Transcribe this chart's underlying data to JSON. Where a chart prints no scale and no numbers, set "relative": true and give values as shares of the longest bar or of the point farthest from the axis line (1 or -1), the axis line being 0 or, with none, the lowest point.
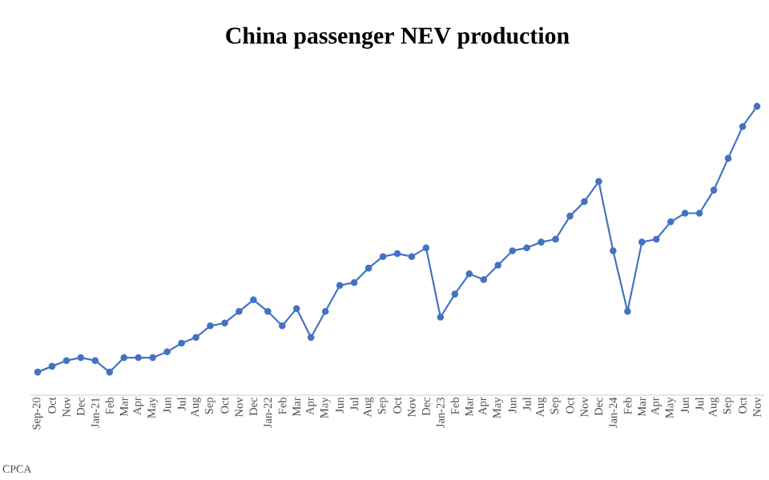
{
  "chart_data": {
    "type": "line",
    "title": "China passenger NEV production",
    "relative": true,
    "marker": "circle",
    "line_style": "solid",
    "categories": [
      "Sep-20",
      "Oct",
      "Nov",
      "Dec",
      "Jan-21",
      "Feb",
      "Mar",
      "Apr",
      "May",
      "Jun",
      "Jul",
      "Aug",
      "Sep",
      "Oct",
      "Nov",
      "Dec",
      "Jan-22",
      "Feb",
      "Mar",
      "Apr",
      "May",
      "Jun",
      "Jul",
      "Aug",
      "Sep",
      "Oct",
      "Nov",
      "Dec",
      "Jan-23",
      "Feb",
      "Mar",
      "Apr",
      "May",
      "Jun",
      "Jul",
      "Aug",
      "Sep",
      "Oct",
      "Nov",
      "Dec",
      "Jan-24",
      "Feb",
      "Mar",
      "Apr",
      "May",
      "Jun",
      "Jul",
      "Aug",
      "Sep",
      "Oct",
      "Nov"
    ],
    "series": [
      {
        "color": "#4472c4",
        "values": [
          0.08,
          0.1,
          0.12,
          0.13,
          0.12,
          0.08,
          0.13,
          0.13,
          0.13,
          0.15,
          0.18,
          0.2,
          0.24,
          0.25,
          0.29,
          0.33,
          0.29,
          0.24,
          0.3,
          0.2,
          0.29,
          0.38,
          0.39,
          0.44,
          0.48,
          0.49,
          0.48,
          0.51,
          0.27,
          0.35,
          0.42,
          0.4,
          0.45,
          0.5,
          0.51,
          0.53,
          0.54,
          0.62,
          0.67,
          0.74,
          0.5,
          0.29,
          0.53,
          0.54,
          0.6,
          0.63,
          0.63,
          0.71,
          0.82,
          0.93,
          1
        ]
      }
    ],
    "annotations": [
      "CPCA"
    ]
  }
}
